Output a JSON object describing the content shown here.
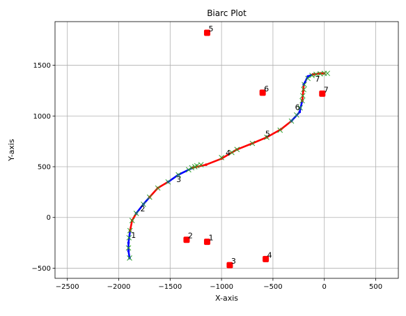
{
  "chart_data": {
    "type": "scatter",
    "title": "Biarc Plot",
    "xlabel": "X-axis",
    "ylabel": "Y-axis",
    "xlim": [
      -2620,
      720
    ],
    "ylim": [
      -600,
      1930
    ],
    "xticks": [
      -2500,
      -2000,
      -1500,
      -1000,
      -500,
      0,
      500
    ],
    "yticks": [
      -500,
      0,
      500,
      1000,
      1500
    ],
    "xtick_labels": [
      "−2500",
      "−2000",
      "−1500",
      "−1000",
      "−500",
      "0",
      "500"
    ],
    "ytick_labels": [
      "−500",
      "0",
      "500",
      "1000",
      "1500"
    ],
    "grid": true,
    "arcs": [
      {
        "color": "#0000ff",
        "points": [
          [
            -1895,
            -400
          ],
          [
            -1905,
            -330
          ],
          [
            -1905,
            -250
          ],
          [
            -1890,
            -130
          ]
        ]
      },
      {
        "color": "#ff0000",
        "points": [
          [
            -1890,
            -130
          ],
          [
            -1870,
            -30
          ],
          [
            -1830,
            40
          ]
        ]
      },
      {
        "color": "#0000ff",
        "points": [
          [
            -1830,
            40
          ],
          [
            -1760,
            130
          ],
          [
            -1700,
            200
          ]
        ]
      },
      {
        "color": "#ff0000",
        "points": [
          [
            -1700,
            200
          ],
          [
            -1620,
            290
          ],
          [
            -1520,
            350
          ]
        ]
      },
      {
        "color": "#0000ff",
        "points": [
          [
            -1520,
            350
          ],
          [
            -1420,
            420
          ],
          [
            -1280,
            490
          ]
        ]
      },
      {
        "color": "#ff0000",
        "points": [
          [
            -1280,
            490
          ],
          [
            -1150,
            520
          ],
          [
            -1000,
            580
          ],
          [
            -850,
            670
          ]
        ]
      },
      {
        "color": "#ff0000",
        "points": [
          [
            -850,
            670
          ],
          [
            -700,
            730
          ],
          [
            -560,
            790
          ]
        ]
      },
      {
        "color": "#ff0000",
        "points": [
          [
            -560,
            790
          ],
          [
            -420,
            870
          ],
          [
            -320,
            950
          ]
        ]
      },
      {
        "color": "#0000ff",
        "points": [
          [
            -320,
            950
          ],
          [
            -240,
            1040
          ],
          [
            -215,
            1150
          ]
        ]
      },
      {
        "color": "#ff0000",
        "points": [
          [
            -215,
            1150
          ],
          [
            -205,
            1250
          ],
          [
            -200,
            1310
          ]
        ]
      },
      {
        "color": "#0000ff",
        "points": [
          [
            -200,
            1310
          ],
          [
            -160,
            1390
          ],
          [
            -110,
            1410
          ]
        ]
      },
      {
        "color": "#ff0000",
        "points": [
          [
            -110,
            1410
          ],
          [
            -40,
            1420
          ],
          [
            0,
            1420
          ]
        ]
      }
    ],
    "x_markers": [
      [
        -1895,
        -400
      ],
      [
        -1905,
        -300
      ],
      [
        -1900,
        -200
      ],
      [
        -1890,
        -130
      ],
      [
        -1870,
        -30
      ],
      [
        -1830,
        40
      ],
      [
        -1760,
        130
      ],
      [
        -1700,
        200
      ],
      [
        -1620,
        290
      ],
      [
        -1520,
        350
      ],
      [
        -1420,
        420
      ],
      [
        -1320,
        470
      ],
      [
        -1290,
        490
      ],
      [
        -1260,
        500
      ],
      [
        -1240,
        510
      ],
      [
        -1200,
        520
      ],
      [
        -1000,
        590
      ],
      [
        -900,
        640
      ],
      [
        -850,
        670
      ],
      [
        -700,
        730
      ],
      [
        -560,
        790
      ],
      [
        -430,
        860
      ],
      [
        -320,
        950
      ],
      [
        -270,
        1010
      ],
      [
        -235,
        1080
      ],
      [
        -215,
        1150
      ],
      [
        -210,
        1200
      ],
      [
        -200,
        1260
      ],
      [
        -195,
        1310
      ],
      [
        -160,
        1370
      ],
      [
        -120,
        1400
      ],
      [
        -80,
        1410
      ],
      [
        -40,
        1415
      ],
      [
        0,
        1420
      ],
      [
        30,
        1420
      ]
    ],
    "control_points": [
      {
        "label": "1",
        "x": -1140,
        "y": -240
      },
      {
        "label": "2",
        "x": -1340,
        "y": -220
      },
      {
        "label": "3",
        "x": -920,
        "y": -470
      },
      {
        "label": "4",
        "x": -570,
        "y": -410
      },
      {
        "label": "5",
        "x": -1140,
        "y": 1820
      },
      {
        "label": "6",
        "x": -600,
        "y": 1230
      },
      {
        "label": "7",
        "x": -20,
        "y": 1220
      }
    ],
    "curve_labels": [
      {
        "label": "1",
        "x": -1880,
        "y": -200
      },
      {
        "label": "2",
        "x": -1790,
        "y": 60
      },
      {
        "label": "3",
        "x": -1440,
        "y": 350
      },
      {
        "label": "4",
        "x": -960,
        "y": 610
      },
      {
        "label": "5",
        "x": -575,
        "y": 800
      },
      {
        "label": "6",
        "x": -285,
        "y": 1060
      },
      {
        "label": "7",
        "x": -90,
        "y": 1340
      }
    ],
    "colors": {
      "arc_a": "#0000ff",
      "arc_b": "#ff0000",
      "x_marker": "#2ca02c",
      "control_point": "#ff0000"
    }
  }
}
